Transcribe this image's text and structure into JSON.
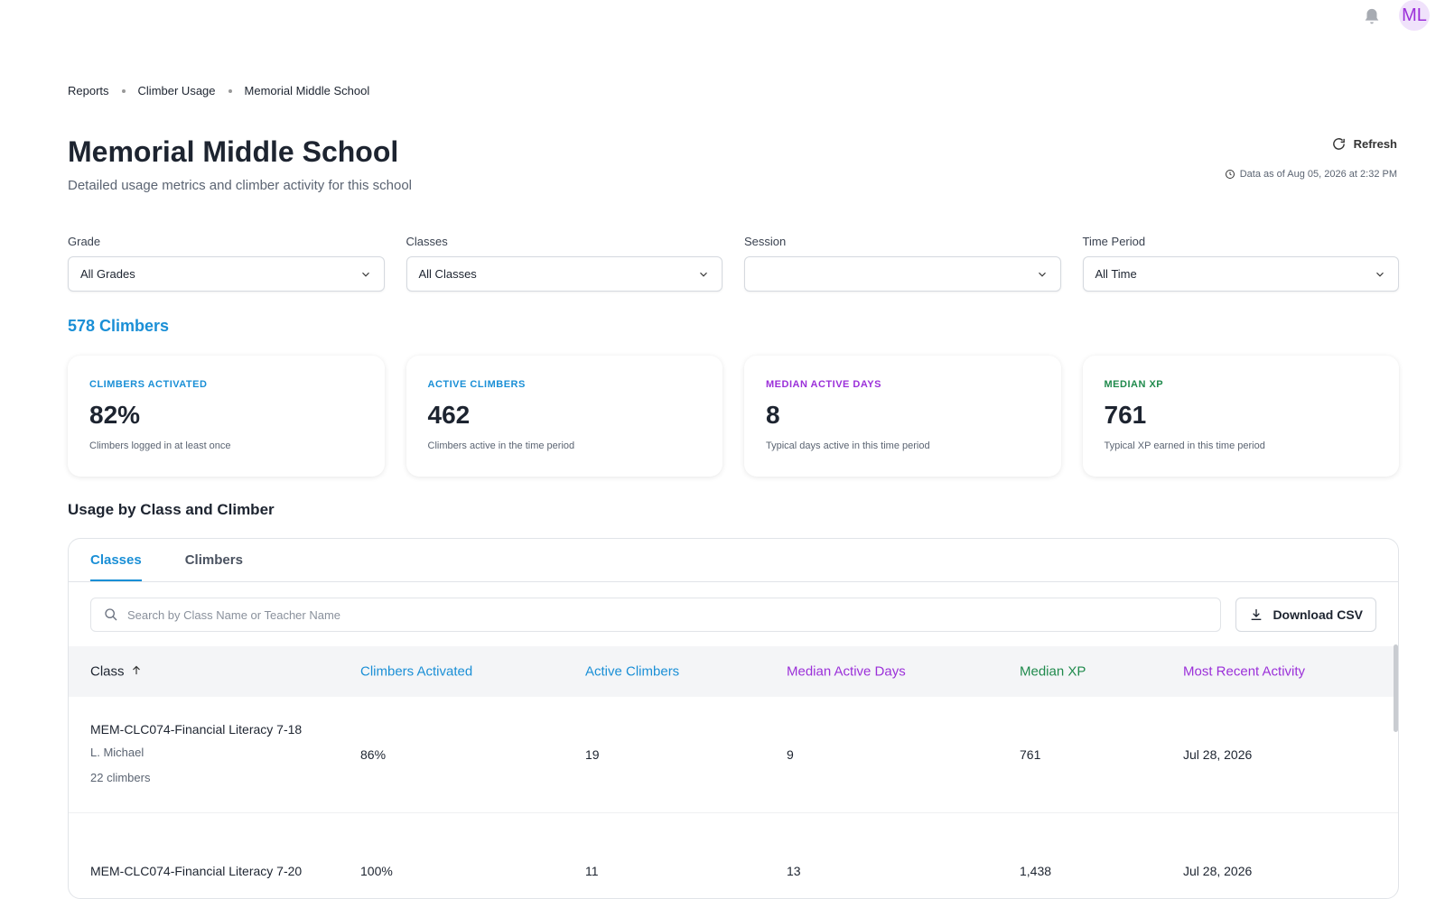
{
  "header": {
    "avatar": "ML"
  },
  "breadcrumb": [
    "Reports",
    "Climber Usage",
    "Memorial Middle School"
  ],
  "page": {
    "title": "Memorial Middle School",
    "subtitle": "Detailed usage metrics and climber activity for this school",
    "refresh": "Refresh",
    "data_as_of": "Data as of Aug 05, 2026 at 2:32 PM"
  },
  "filters": [
    {
      "label": "Grade",
      "value": "All Grades"
    },
    {
      "label": "Classes",
      "value": "All Classes"
    },
    {
      "label": "Session"
    },
    {
      "label": "Time Period",
      "value": "All Time"
    }
  ],
  "climber_count": "578 Climbers",
  "stats": [
    {
      "label": "CLIMBERS ACTIVATED",
      "value": "82%",
      "caption": "Climbers logged in at least once"
    },
    {
      "label": "ACTIVE CLIMBERS",
      "value": "462",
      "caption": "Climbers active in the time period"
    },
    {
      "label": "MEDIAN ACTIVE DAYS",
      "value": "8",
      "caption": "Typical days active in this time period"
    },
    {
      "label": "MEDIAN XP",
      "value": "761",
      "caption": "Typical XP earned in this time period"
    }
  ],
  "section_title": "Usage by Class and Climber",
  "tabs": [
    "Classes",
    "Climbers"
  ],
  "search_placeholder": "Search by Class Name or Teacher Name",
  "download": "Download CSV",
  "table": {
    "columns": [
      "Class",
      "Climbers Activated",
      "Active Climbers",
      "Median Active Days",
      "Median XP",
      "Most Recent Activity"
    ],
    "rows": [
      {
        "class": "MEM-CLC074-Financial Literacy 7-18",
        "teacher": "L. Michael",
        "climbers": "22 climbers",
        "cells": [
          "86%",
          "19",
          "9",
          "761",
          "Jul 28, 2026"
        ]
      },
      {
        "class": "MEM-CLC074-Financial Literacy 7-20",
        "cells": [
          "100%",
          "11",
          "13",
          "1,438",
          "Jul 28, 2026"
        ]
      }
    ]
  }
}
